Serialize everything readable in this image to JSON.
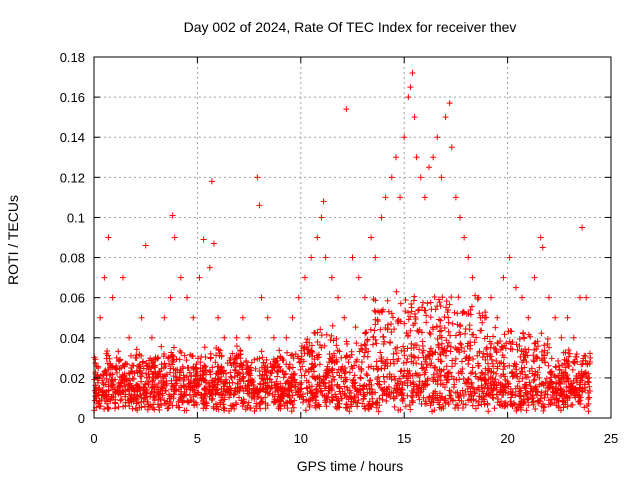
{
  "chart_data": {
    "type": "scatter",
    "title": "Day 002 of 2024, Rate Of TEC Index for receiver thev",
    "xlabel": "GPS time / hours",
    "ylabel": "ROTI / TECUs",
    "xlim": [
      0,
      25
    ],
    "ylim": [
      0,
      0.18
    ],
    "x_ticks": [
      0,
      5,
      10,
      15,
      20,
      25
    ],
    "y_ticks": [
      0,
      0.02,
      0.04,
      0.06,
      0.08,
      0.1,
      0.12,
      0.14,
      0.16,
      0.18
    ],
    "x_tick_labels": [
      "0",
      "5",
      "10",
      "15",
      "20",
      "25"
    ],
    "y_tick_labels": [
      "0",
      "0.02",
      "0.04",
      "0.06",
      "0.08",
      "0.1",
      "0.12",
      "0.14",
      "0.16",
      "0.18"
    ],
    "grid": true,
    "marker": "+",
    "marker_color": "#ff0000",
    "series": [
      {
        "x": [
          0.1,
          0.3,
          0.5,
          0.7,
          0.9,
          1.1,
          1.4,
          1.7,
          2.0,
          2.3,
          2.5,
          2.8,
          3.1,
          3.4,
          3.7,
          3.8,
          3.9,
          4.2,
          4.5,
          4.8,
          5.1,
          5.3,
          5.6,
          5.7,
          5.8,
          6.0,
          6.3,
          6.6,
          6.9,
          7.2,
          7.5,
          7.9,
          8.0,
          8.1,
          8.4,
          8.7,
          9.0,
          9.3,
          9.6,
          9.9,
          10.2,
          10.5,
          10.8,
          11.0,
          11.1,
          11.2,
          11.5,
          11.8,
          12.1,
          12.2,
          12.5,
          12.8,
          13.1,
          13.4,
          13.6,
          13.9,
          14.1,
          14.4,
          14.6,
          14.8,
          15.0,
          15.2,
          15.3,
          15.4,
          15.5,
          15.6,
          15.8,
          16.0,
          16.2,
          16.4,
          16.6,
          16.8,
          17.0,
          17.2,
          17.3,
          17.5,
          17.7,
          17.9,
          18.1,
          18.3,
          18.6,
          18.9,
          19.2,
          19.5,
          19.8,
          20.1,
          20.4,
          20.7,
          21.0,
          21.3,
          21.6,
          21.7,
          22.0,
          22.3,
          22.6,
          22.9,
          23.2,
          23.5,
          23.6,
          23.8,
          24.0
        ],
        "y": [
          0.02,
          0.05,
          0.07,
          0.09,
          0.06,
          0.03,
          0.07,
          0.04,
          0.03,
          0.05,
          0.086,
          0.04,
          0.03,
          0.05,
          0.06,
          0.101,
          0.09,
          0.07,
          0.06,
          0.05,
          0.07,
          0.089,
          0.075,
          0.118,
          0.087,
          0.05,
          0.04,
          0.03,
          0.04,
          0.05,
          0.04,
          0.12,
          0.106,
          0.06,
          0.05,
          0.04,
          0.03,
          0.04,
          0.05,
          0.06,
          0.07,
          0.08,
          0.09,
          0.1,
          0.108,
          0.08,
          0.07,
          0.06,
          0.05,
          0.154,
          0.08,
          0.07,
          0.06,
          0.09,
          0.08,
          0.1,
          0.11,
          0.12,
          0.13,
          0.11,
          0.14,
          0.16,
          0.165,
          0.172,
          0.15,
          0.13,
          0.12,
          0.11,
          0.125,
          0.13,
          0.14,
          0.12,
          0.15,
          0.157,
          0.135,
          0.11,
          0.1,
          0.09,
          0.08,
          0.07,
          0.06,
          0.05,
          0.06,
          0.05,
          0.07,
          0.08,
          0.065,
          0.06,
          0.05,
          0.07,
          0.09,
          0.085,
          0.06,
          0.05,
          0.04,
          0.05,
          0.04,
          0.06,
          0.095,
          0.06,
          0.03
        ]
      }
    ]
  }
}
